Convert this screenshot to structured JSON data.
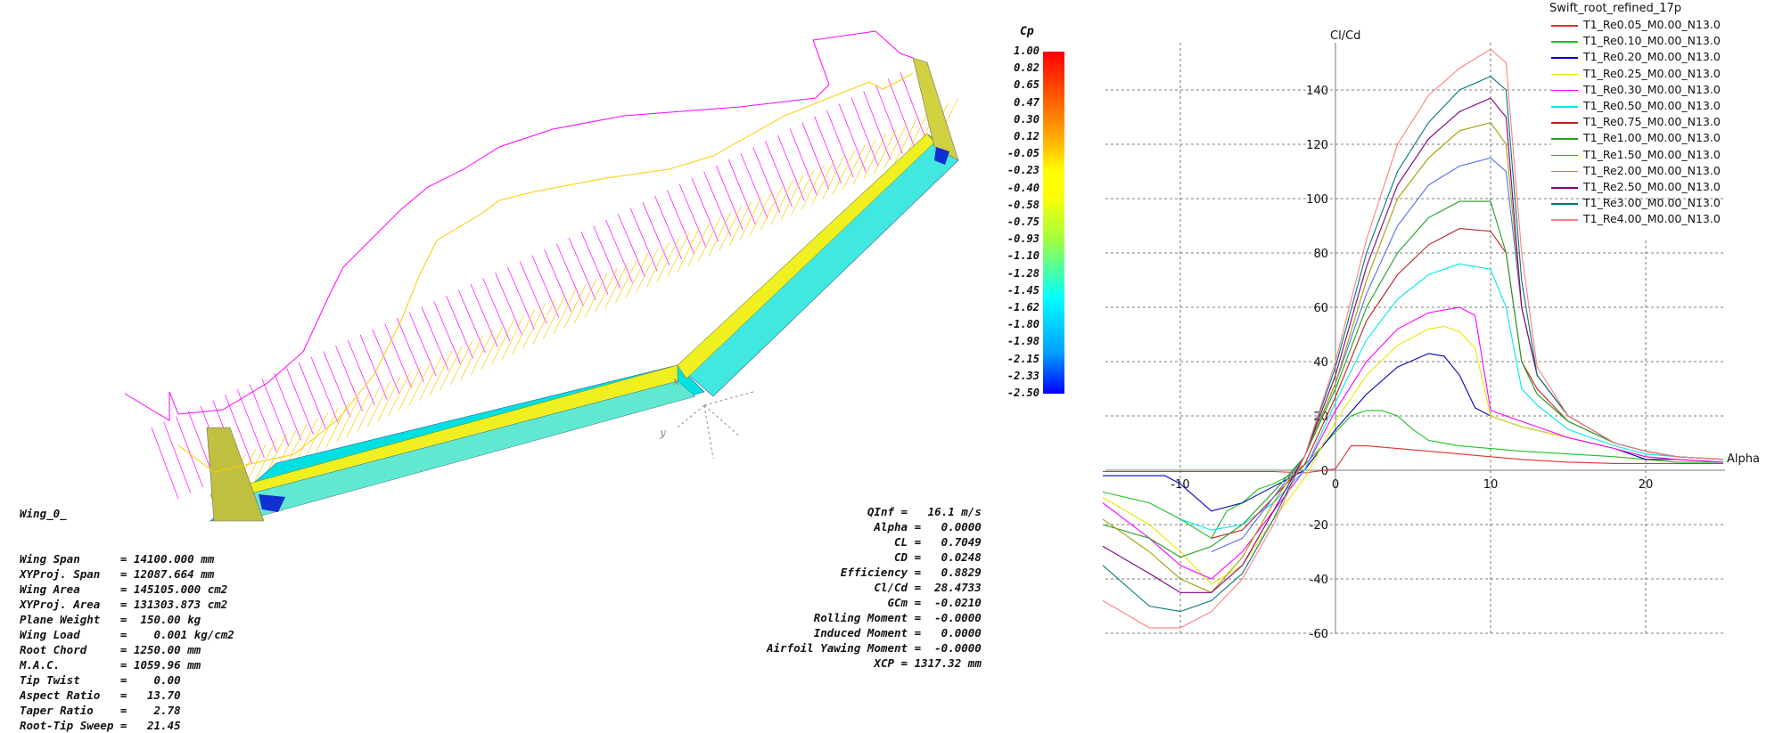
{
  "wing_view": {
    "wing_name": "Wing_0_",
    "axis_labels": {
      "x": "x",
      "y": "y"
    },
    "wing_data": [
      {
        "label": "Wing Span",
        "value": "= 14100.000 mm"
      },
      {
        "label": "XYProj. Span",
        "value": "= 12087.664 mm"
      },
      {
        "label": "Wing Area",
        "value": "= 145105.000 cm2"
      },
      {
        "label": "XYProj. Area",
        "value": "= 131303.873 cm2"
      },
      {
        "label": "Plane Weight",
        "value": "=  150.00 kg"
      },
      {
        "label": "Wing Load",
        "value": "=    0.001 kg/cm2"
      },
      {
        "label": "Root Chord",
        "value": "= 1250.00 mm"
      },
      {
        "label": "M.A.C.",
        "value": "= 1059.96 mm"
      },
      {
        "label": "Tip Twist",
        "value": "=    0.00"
      },
      {
        "label": "Aspect Ratio",
        "value": "=   13.70"
      },
      {
        "label": "Taper Ratio",
        "value": "=    2.78"
      },
      {
        "label": "Root-Tip Sweep",
        "value": "=   21.45"
      }
    ],
    "flight_data": [
      {
        "label": "QInf",
        "value": "=   16.1 m/s"
      },
      {
        "label": "Alpha",
        "value": "=   0.0000"
      },
      {
        "label": "CL",
        "value": "=   0.7049"
      },
      {
        "label": "CD",
        "value": "=   0.0248"
      },
      {
        "label": "Efficiency",
        "value": "=   0.8829"
      },
      {
        "label": "Cl/Cd",
        "value": "=  28.4733"
      },
      {
        "label": "GCm",
        "value": "=  -0.0210"
      },
      {
        "label": "Rolling Moment",
        "value": "=  -0.0000"
      },
      {
        "label": "Induced Moment",
        "value": "=   0.0000"
      },
      {
        "label": "Airfoil Yawing Moment",
        "value": "=  -0.0000"
      },
      {
        "label": "XCP",
        "value": "= 1317.32 mm"
      }
    ],
    "cp_legend": {
      "title": "Cp",
      "values": [
        "1.00",
        "0.82",
        "0.65",
        "0.47",
        "0.30",
        "0.12",
        "-0.05",
        "-0.23",
        "-0.40",
        "-0.58",
        "-0.75",
        "-0.93",
        "-1.10",
        "-1.28",
        "-1.45",
        "-1.62",
        "-1.80",
        "-1.98",
        "-2.15",
        "-2.33",
        "-2.50"
      ]
    },
    "colors": {
      "lift": "#ff00ff",
      "drag": "#ffcc00",
      "wing_surface": "#f0f020",
      "cp_low": "#0000ff",
      "cp_mid": "#00ffff"
    }
  },
  "polar_view": {
    "legend_title": "Swift_root_refined_17p",
    "y_axis_label": "Cl/Cd",
    "x_axis_label": "Alpha",
    "x_ticks": [
      "-10",
      "0",
      "10",
      "20"
    ],
    "y_ticks": [
      "140",
      "120",
      "100",
      "80",
      "60",
      "40",
      "20",
      "0",
      "-20",
      "-40",
      "-60"
    ],
    "chart_data": {
      "type": "line",
      "xlabel": "Alpha",
      "ylabel": "Cl/Cd",
      "xlim": [
        -15,
        25
      ],
      "ylim": [
        -60,
        155
      ],
      "grid": true,
      "legend": "top-right",
      "series": [
        {
          "name": "T1_Re0.05_M0.00_N13.0",
          "color": "#e03030",
          "x": [
            -15,
            -10,
            -8,
            -6,
            -4,
            -2,
            0,
            1,
            2,
            4,
            6,
            8,
            10,
            12,
            15,
            18,
            20,
            22,
            25
          ],
          "y": [
            -0.5,
            -0.5,
            -0.5,
            -0.5,
            -0.5,
            -1,
            0.5,
            9,
            9,
            8,
            7,
            6,
            5,
            4,
            3,
            2.5,
            2.5,
            2.5,
            2.5
          ]
        },
        {
          "name": "T1_Re0.10_M0.00_N13.0",
          "color": "#20c020",
          "x": [
            -15,
            -12,
            -10,
            -8,
            -7,
            -6,
            -5,
            -4,
            -3,
            -2,
            -1,
            0,
            1,
            2,
            3,
            4,
            5,
            6,
            8,
            10,
            12,
            15,
            18,
            20,
            22,
            25
          ],
          "y": [
            -8,
            -12,
            -18,
            -25,
            -15,
            -12,
            -7,
            -5,
            -2,
            2,
            8,
            14,
            20,
            22,
            22,
            20,
            15,
            11,
            9,
            8,
            7,
            6,
            5,
            4,
            3,
            3
          ]
        },
        {
          "name": "T1_Re0.20_M0.00_N13.0",
          "color": "#0000c0",
          "x": [
            -15,
            -12,
            -11,
            -10,
            -8,
            -6,
            -4,
            -2,
            0,
            2,
            4,
            6,
            7,
            8,
            9,
            10,
            12,
            15,
            18,
            20,
            22,
            25
          ],
          "y": [
            -2,
            -2,
            -2,
            -5,
            -15,
            -12,
            -6,
            0,
            15,
            28,
            38,
            43,
            42,
            35,
            23,
            20,
            16,
            12,
            8,
            4,
            4,
            3
          ]
        },
        {
          "name": "T1_Re0.25_M0.00_N13.0",
          "color": "#e8e800",
          "x": [
            -15,
            -12,
            -10,
            -8,
            -6,
            -4,
            -2,
            0,
            2,
            4,
            6,
            7,
            8,
            9,
            10,
            12,
            15,
            18,
            20,
            22,
            25
          ],
          "y": [
            -10,
            -20,
            -30,
            -42,
            -35,
            -18,
            -3,
            18,
            35,
            46,
            52,
            53,
            51,
            45,
            20,
            16,
            12,
            8,
            5,
            4,
            3
          ]
        },
        {
          "name": "T1_Re0.30_M0.00_N13.0",
          "color": "#ff00ff",
          "x": [
            -15,
            -12,
            -10,
            -8,
            -6,
            -4,
            -2,
            0,
            2,
            4,
            6,
            8,
            9,
            10,
            12,
            15,
            18,
            20,
            22,
            25
          ],
          "y": [
            -12,
            -25,
            -35,
            -40,
            -30,
            -15,
            0,
            22,
            40,
            52,
            58,
            60,
            57,
            22,
            18,
            12,
            8,
            5,
            4,
            3
          ]
        },
        {
          "name": "T1_Re0.50_M0.00_N13.0",
          "color": "#00e8e8",
          "x": [
            -10,
            -8,
            -6,
            -4,
            -2,
            0,
            2,
            4,
            6,
            8,
            10,
            11,
            12,
            13,
            15,
            18,
            20,
            22,
            25
          ],
          "y": [
            -18,
            -22,
            -20,
            -12,
            0,
            25,
            48,
            63,
            72,
            76,
            74,
            60,
            30,
            24,
            15,
            9,
            6,
            5,
            4
          ]
        },
        {
          "name": "T1_Re0.75_M0.00_N13.0",
          "color": "#c02020",
          "x": [
            -8,
            -6,
            -4,
            -2,
            0,
            2,
            4,
            6,
            8,
            10,
            11,
            12,
            13,
            15,
            18,
            20,
            22,
            25
          ],
          "y": [
            -25,
            -22,
            -10,
            2,
            27,
            55,
            72,
            83,
            89,
            88,
            80,
            40,
            30,
            18,
            10,
            7,
            5,
            4
          ]
        },
        {
          "name": "T1_Re1.00_M0.00_N13.0",
          "color": "#20a020",
          "x": [
            -15,
            -12,
            -10,
            -8,
            -6,
            -4,
            -2,
            0,
            2,
            4,
            6,
            8,
            10,
            11,
            12,
            13,
            15,
            18,
            20,
            22,
            25
          ],
          "y": [
            -20,
            -25,
            -32,
            -28,
            -20,
            -8,
            5,
            30,
            60,
            80,
            93,
            99,
            99,
            80,
            40,
            28,
            18,
            10,
            7,
            5,
            4
          ]
        },
        {
          "name": "T1_Re1.50_M0.00_N13.0",
          "color": "#5070f0",
          "x": [
            -8,
            -6,
            -4,
            -2,
            0,
            2,
            4,
            6,
            8,
            10,
            11,
            12,
            13,
            15,
            18,
            20,
            22,
            25
          ],
          "y": [
            -30,
            -25,
            -10,
            5,
            32,
            65,
            90,
            105,
            112,
            115,
            110,
            60,
            35,
            20,
            10,
            7,
            5,
            4
          ]
        },
        {
          "name": "T1_Re2.00_M0.00_N13.0",
          "color": "#a0a000",
          "x": [
            -15,
            -12,
            -10,
            -8,
            -6,
            -4,
            -2,
            0,
            2,
            4,
            6,
            8,
            10,
            11,
            12,
            13,
            15,
            18,
            20,
            22,
            25
          ],
          "y": [
            -18,
            -30,
            -40,
            -45,
            -32,
            -12,
            5,
            32,
            70,
            100,
            115,
            125,
            128,
            120,
            60,
            35,
            20,
            10,
            7,
            5,
            4
          ]
        },
        {
          "name": "T1_Re2.50_M0.00_N13.0",
          "color": "#800080",
          "x": [
            -15,
            -12,
            -10,
            -8,
            -6,
            -4,
            -2,
            0,
            2,
            4,
            6,
            8,
            10,
            11,
            12,
            13,
            15,
            18,
            20,
            22,
            25
          ],
          "y": [
            -28,
            -38,
            -45,
            -45,
            -35,
            -15,
            5,
            35,
            75,
            105,
            122,
            132,
            137,
            130,
            60,
            35,
            20,
            10,
            7,
            5,
            4
          ]
        },
        {
          "name": "T1_Re3.00_M0.00_N13.0",
          "color": "#007878",
          "x": [
            -15,
            -12,
            -10,
            -8,
            -6,
            -4,
            -2,
            0,
            2,
            4,
            6,
            8,
            10,
            11,
            12,
            13,
            15,
            18,
            20,
            22,
            25
          ],
          "y": [
            -35,
            -50,
            -52,
            -48,
            -38,
            -18,
            5,
            38,
            80,
            110,
            128,
            140,
            145,
            140,
            70,
            35,
            20,
            10,
            7,
            5,
            4
          ]
        },
        {
          "name": "T1_Re4.00_M0.00_N13.0",
          "color": "#ff8080",
          "x": [
            -15,
            -12,
            -10,
            -8,
            -6,
            -4,
            -2,
            0,
            2,
            4,
            6,
            8,
            10,
            11,
            12,
            13,
            15,
            18,
            20,
            22,
            25
          ],
          "y": [
            -48,
            -58,
            -58,
            -52,
            -40,
            -20,
            5,
            40,
            85,
            120,
            138,
            148,
            155,
            150,
            80,
            38,
            20,
            10,
            7,
            5,
            4
          ]
        }
      ]
    }
  }
}
